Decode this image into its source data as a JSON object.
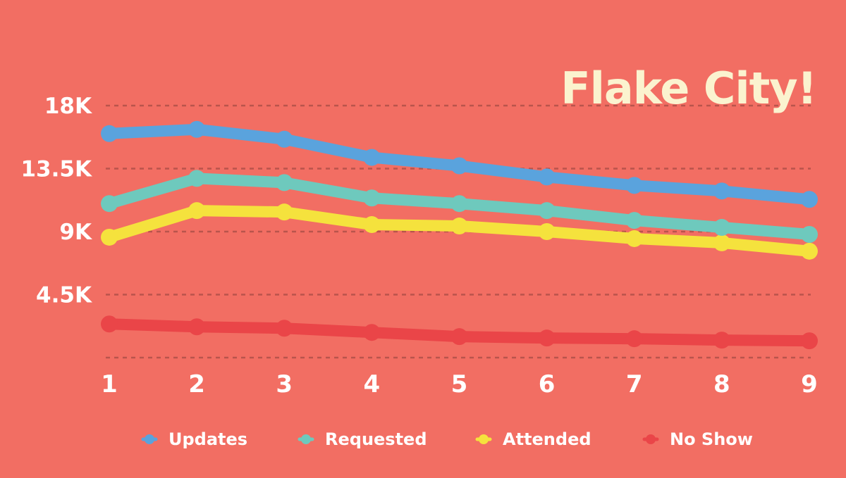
{
  "chart_data": {
    "type": "line",
    "title": "Flake City!",
    "x": [
      1,
      2,
      3,
      4,
      5,
      6,
      7,
      8,
      9
    ],
    "x_tick_labels": [
      "1",
      "2",
      "3",
      "4",
      "5",
      "6",
      "7",
      "8",
      "9"
    ],
    "y_ticks": [
      4500,
      9000,
      13500,
      18000
    ],
    "y_tick_labels": [
      "4.5K",
      "9K",
      "13.5K",
      "18K"
    ],
    "ylim": [
      0,
      18000
    ],
    "grid": true,
    "legend_position": "bottom",
    "series": [
      {
        "name": "Updates",
        "color": "#5aa3dd",
        "values": [
          16000,
          16300,
          15600,
          14300,
          13700,
          12900,
          12300,
          11900,
          11300
        ]
      },
      {
        "name": "Requested",
        "color": "#6ec9bd",
        "values": [
          11000,
          12800,
          12500,
          11400,
          11000,
          10500,
          9800,
          9300,
          8800
        ]
      },
      {
        "name": "Attended",
        "color": "#f5e23d",
        "values": [
          8600,
          10500,
          10400,
          9500,
          9400,
          9000,
          8500,
          8200,
          7600
        ]
      },
      {
        "name": "No Show",
        "color": "#ea4548",
        "values": [
          2400,
          2200,
          2100,
          1800,
          1500,
          1400,
          1350,
          1250,
          1200
        ]
      }
    ]
  }
}
